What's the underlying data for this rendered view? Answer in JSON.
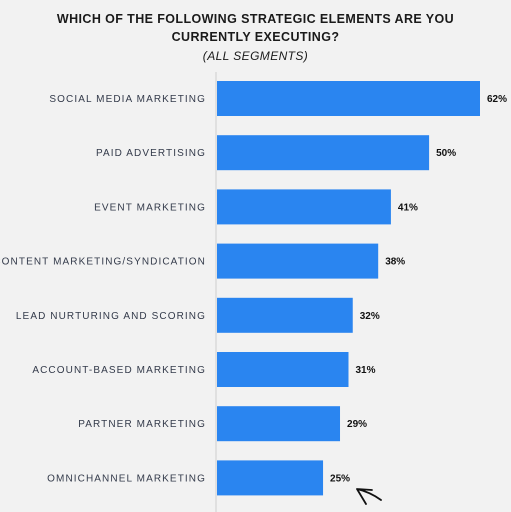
{
  "header": {
    "title_line1": "WHICH OF THE FOLLOWING STRATEGIC ELEMENTS ARE YOU",
    "title_line2": "CURRENTLY EXECUTING?",
    "subtitle": "(ALL SEGMENTS)"
  },
  "colors": {
    "bar": "#2a85f0",
    "background": "#f2f2f2",
    "axis": "#cfcfcf"
  },
  "chart_data": {
    "type": "bar",
    "orientation": "horizontal",
    "title": "WHICH OF THE FOLLOWING STRATEGIC ELEMENTS ARE YOU CURRENTLY EXECUTING?",
    "subtitle": "(ALL SEGMENTS)",
    "categories": [
      "SOCIAL MEDIA MARKETING",
      "PAID ADVERTISING",
      "EVENT MARKETING",
      "CONTENT MARKETING/SYNDICATION",
      "LEAD NURTURING AND SCORING",
      "ACCOUNT-BASED MARKETING",
      "PARTNER MARKETING",
      "OMNICHANNEL MARKETING"
    ],
    "values": [
      62,
      50,
      41,
      38,
      32,
      31,
      29,
      25
    ],
    "value_labels": [
      "62%",
      "50%",
      "41%",
      "38%",
      "32%",
      "31%",
      "29%",
      "25%"
    ],
    "unit": "%",
    "xlim": [
      0,
      62
    ],
    "grid": false,
    "legend": "none"
  }
}
